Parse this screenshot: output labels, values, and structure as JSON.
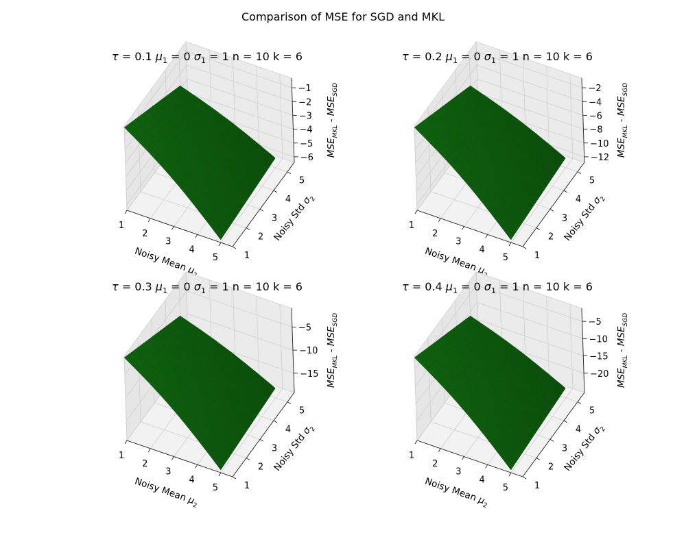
{
  "figure": {
    "title": "Comparison of MSE for SGD and MKL"
  },
  "colors": {
    "surface": "#0d5c0d",
    "surface_edge": "#173d17",
    "pane": "#f2f2f2",
    "grid": "#cfcfcf"
  },
  "chart_data": [
    {
      "type": "surface3d",
      "title": "τ = 0.1 μ1 = 0 σ1 = 1 n = 10 k = 6",
      "params": {
        "tau": 0.1,
        "mu1": 0,
        "sigma1": 1,
        "n": 10,
        "k": 6
      },
      "xlabel": "Noisy Mean μ2",
      "ylabel": "Noisy Std σ2",
      "zlabel": "MSE_MKL - MSE_SGD",
      "xlim": [
        1,
        5.5
      ],
      "ylim": [
        1,
        5.5
      ],
      "zlim": [
        -6.4,
        -0.3
      ],
      "xticks": [
        1,
        2,
        3,
        4,
        5
      ],
      "yticks": [
        1,
        2,
        3,
        4,
        5
      ],
      "zticks": [
        -1,
        -2,
        -3,
        -4,
        -5,
        -6
      ],
      "corners": {
        "x1_y1": -0.4,
        "x5_y1": -6.2,
        "x5_y5": -5.7,
        "x1_y5": -2.8
      },
      "grid": true
    },
    {
      "type": "surface3d",
      "title": "τ = 0.2 μ1 = 0 σ1 = 1 n = 10 k = 6",
      "params": {
        "tau": 0.2,
        "mu1": 0,
        "sigma1": 1,
        "n": 10,
        "k": 6
      },
      "xlabel": "Noisy Mean μ2",
      "ylabel": "Noisy Std σ2",
      "zlabel": "MSE_MKL - MSE_SGD",
      "xlim": [
        1,
        5.5
      ],
      "ylim": [
        1,
        5.5
      ],
      "zlim": [
        -12.8,
        -0.6
      ],
      "xticks": [
        1,
        2,
        3,
        4,
        5
      ],
      "yticks": [
        1,
        2,
        3,
        4,
        5
      ],
      "zticks": [
        -2,
        -4,
        -6,
        -8,
        -10,
        -12
      ],
      "corners": {
        "x1_y1": -0.8,
        "x5_y1": -12.4,
        "x5_y5": -11.4,
        "x1_y5": -5.6
      },
      "grid": true
    },
    {
      "type": "surface3d",
      "title": "τ = 0.3 μ1 = 0 σ1 = 1 n = 10 k = 6",
      "params": {
        "tau": 0.3,
        "mu1": 0,
        "sigma1": 1,
        "n": 10,
        "k": 6
      },
      "xlabel": "Noisy Mean μ2",
      "ylabel": "Noisy Std σ2",
      "zlabel": "MSE_MKL - MSE_SGD",
      "xlim": [
        1,
        5.5
      ],
      "ylim": [
        1,
        5.5
      ],
      "zlim": [
        -19.2,
        -0.9
      ],
      "xticks": [
        1,
        2,
        3,
        4,
        5
      ],
      "yticks": [
        1,
        2,
        3,
        4,
        5
      ],
      "zticks": [
        -5,
        -10,
        -15
      ],
      "corners": {
        "x1_y1": -1.2,
        "x5_y1": -18.6,
        "x5_y5": -17.1,
        "x1_y5": -8.4
      },
      "grid": true
    },
    {
      "type": "surface3d",
      "title": "τ = 0.4 μ1 = 0 σ1 = 1 n = 10 k = 6",
      "params": {
        "tau": 0.4,
        "mu1": 0,
        "sigma1": 1,
        "n": 10,
        "k": 6
      },
      "xlabel": "Noisy Mean μ2",
      "ylabel": "Noisy Std σ2",
      "zlabel": "MSE_MKL - MSE_SGD",
      "xlim": [
        1,
        5.5
      ],
      "ylim": [
        1,
        5.5
      ],
      "zlim": [
        -25.6,
        -1.2
      ],
      "xticks": [
        1,
        2,
        3,
        4,
        5
      ],
      "yticks": [
        1,
        2,
        3,
        4,
        5
      ],
      "zticks": [
        -5,
        -10,
        -15,
        -20
      ],
      "corners": {
        "x1_y1": -1.6,
        "x5_y1": -24.8,
        "x5_y5": -22.8,
        "x1_y5": -11.2
      },
      "grid": true
    }
  ]
}
